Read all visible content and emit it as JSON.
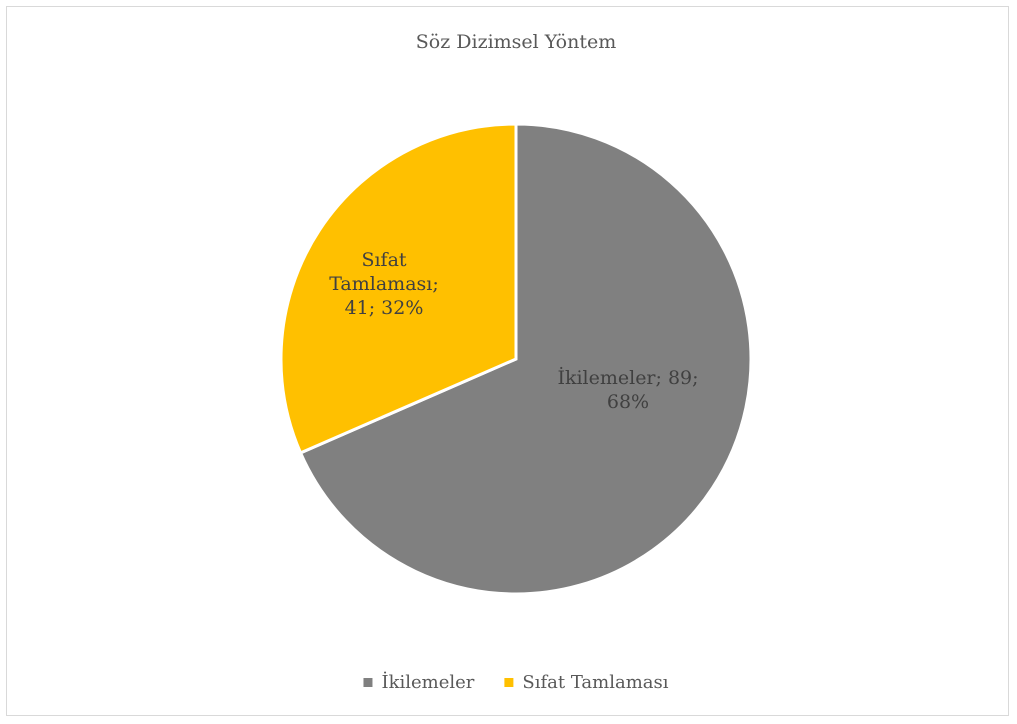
{
  "chart_data": {
    "type": "pie",
    "title": "Söz Dizimsel Yöntem",
    "slices": [
      {
        "name": "İkilemeler",
        "value": 89,
        "percent": 68,
        "color": "#808080",
        "label_lines": [
          "İkilemeler; 89;",
          "68%"
        ]
      },
      {
        "name": "Sıfat Tamlaması",
        "value": 41,
        "percent": 32,
        "color": "#ffc000",
        "label_lines": [
          "Sıfat",
          "Tamlaması;",
          "41; 32%"
        ]
      }
    ],
    "legend": {
      "position": "bottom",
      "entries": [
        "İkilemeler",
        "Sıfat Tamlaması"
      ]
    }
  }
}
